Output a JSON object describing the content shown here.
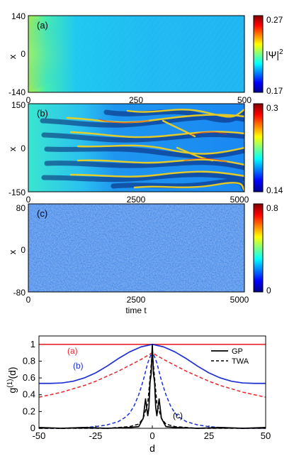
{
  "chart_data": [
    {
      "type": "heatmap",
      "panel_label": "(a)",
      "ylabel": "x",
      "xlim": [
        0,
        500
      ],
      "ylim": [
        -140,
        140
      ],
      "x_ticks": [
        "0",
        "250",
        "500"
      ],
      "y_ticks": [
        "140",
        "0",
        "-140"
      ],
      "colorbar": {
        "label": "|Ψ|",
        "label_sup": "2",
        "min": 0.17,
        "max": 0.27,
        "min_label": "0.17",
        "max_label": "0.27"
      },
      "pattern": "smooth fading wavefront, bright at left edge near t=0"
    },
    {
      "type": "heatmap",
      "panel_label": "(b)",
      "ylabel": "x",
      "xlim": [
        0,
        5000
      ],
      "ylim": [
        -150,
        150
      ],
      "x_ticks": [
        "0",
        "2500",
        "5000"
      ],
      "y_ticks": [
        "150",
        "0",
        "-150"
      ],
      "colorbar": {
        "min": 0.14,
        "max": 0.3,
        "min_label": "0.14",
        "max_label": "0.3"
      },
      "pattern": "branching dark-soliton tracks appearing after t≈1000"
    },
    {
      "type": "heatmap",
      "panel_label": "(c)",
      "ylabel": "x",
      "xlabel": "time t",
      "xlim": [
        0,
        5000
      ],
      "ylim": [
        -80,
        80
      ],
      "x_ticks": [
        "0",
        "2500",
        "5000"
      ],
      "y_ticks": [
        "80",
        "0",
        "-80"
      ],
      "colorbar": {
        "min": 0,
        "max": 0.8,
        "min_label": "0",
        "max_label": "0.8"
      },
      "pattern": "noisy granular field"
    },
    {
      "type": "line",
      "ylabel": "g",
      "ylabel_sup": "(1)",
      "ylabel_suffix": "(d)",
      "xlabel": "d",
      "xlim": [
        -50,
        50
      ],
      "ylim": [
        0,
        1.1
      ],
      "x_ticks": [
        "-50",
        "-25",
        "0",
        "25",
        "50"
      ],
      "y_ticks": [
        "0",
        "0.2",
        "0.4",
        "0.6",
        "0.8",
        "1"
      ],
      "legend": {
        "position": "top-right",
        "entries": [
          {
            "label": "GP",
            "style": "solid"
          },
          {
            "label": "TWA",
            "style": "dashed"
          }
        ]
      },
      "annotations": [
        "(a)",
        "(b)",
        "(c)"
      ],
      "series": [
        {
          "annotation": "(a)",
          "style": "solid",
          "color": "#e8262c",
          "x": [
            -50,
            50
          ],
          "y": [
            1.0,
            1.0
          ]
        },
        {
          "annotation": "(b)",
          "style": "solid",
          "color": "#1c2fd6",
          "x": [
            -50,
            -45,
            -40,
            -35,
            -30,
            -25,
            -20,
            -15,
            -10,
            -5,
            0,
            5,
            10,
            15,
            20,
            25,
            30,
            35,
            40,
            45,
            50
          ],
          "y": [
            0.535,
            0.535,
            0.54,
            0.56,
            0.6,
            0.66,
            0.74,
            0.83,
            0.91,
            0.97,
            1.0,
            0.97,
            0.91,
            0.83,
            0.74,
            0.66,
            0.6,
            0.56,
            0.54,
            0.535,
            0.535
          ]
        },
        {
          "style": "dashed",
          "color": "#e8262c",
          "x": [
            -50,
            -45,
            -40,
            -35,
            -30,
            -25,
            -20,
            -15,
            -10,
            -5,
            0,
            5,
            10,
            15,
            20,
            25,
            30,
            35,
            40,
            45,
            50
          ],
          "y": [
            0.37,
            0.4,
            0.43,
            0.47,
            0.51,
            0.56,
            0.62,
            0.68,
            0.75,
            0.82,
            0.9,
            0.82,
            0.75,
            0.68,
            0.62,
            0.56,
            0.51,
            0.47,
            0.43,
            0.4,
            0.37
          ]
        },
        {
          "style": "dashed",
          "color": "#1c2fd6",
          "x": [
            -50,
            -40,
            -30,
            -25,
            -20,
            -15,
            -12,
            -10,
            -8,
            -6,
            -4,
            -2,
            0,
            2,
            4,
            6,
            8,
            10,
            12,
            15,
            20,
            25,
            30,
            40,
            50
          ],
          "y": [
            0.0,
            0.0,
            0.01,
            0.02,
            0.04,
            0.08,
            0.13,
            0.18,
            0.27,
            0.4,
            0.57,
            0.78,
            0.92,
            0.78,
            0.57,
            0.4,
            0.27,
            0.18,
            0.13,
            0.08,
            0.04,
            0.02,
            0.01,
            0.0,
            0.0
          ]
        },
        {
          "annotation": "(c)",
          "style": "dashed",
          "color": "#000000",
          "x": [
            -50,
            -20,
            -10,
            -6,
            -4,
            -2,
            0,
            2,
            4,
            6,
            10,
            20,
            50
          ],
          "y": [
            0.0,
            0.0,
            0.02,
            0.05,
            0.12,
            0.3,
            0.9,
            0.3,
            0.12,
            0.05,
            0.02,
            0.0,
            0.0
          ]
        },
        {
          "annotation": "(c)",
          "style": "solid",
          "color": "#000000",
          "x": [
            -50,
            -40,
            -30,
            -20,
            -10,
            -6,
            -4,
            -3,
            -2,
            -1.5,
            -1,
            -0.5,
            0,
            0.5,
            1,
            1.5,
            2,
            3,
            4,
            6,
            10,
            20,
            30,
            40,
            50
          ],
          "y": [
            0.01,
            0.0,
            0.01,
            0.0,
            0.01,
            0.02,
            0.12,
            0.35,
            0.15,
            0.25,
            0.55,
            0.65,
            1.0,
            0.65,
            0.55,
            0.25,
            0.15,
            0.35,
            0.12,
            0.02,
            0.01,
            0.0,
            0.01,
            0.0,
            0.01
          ]
        }
      ]
    }
  ]
}
